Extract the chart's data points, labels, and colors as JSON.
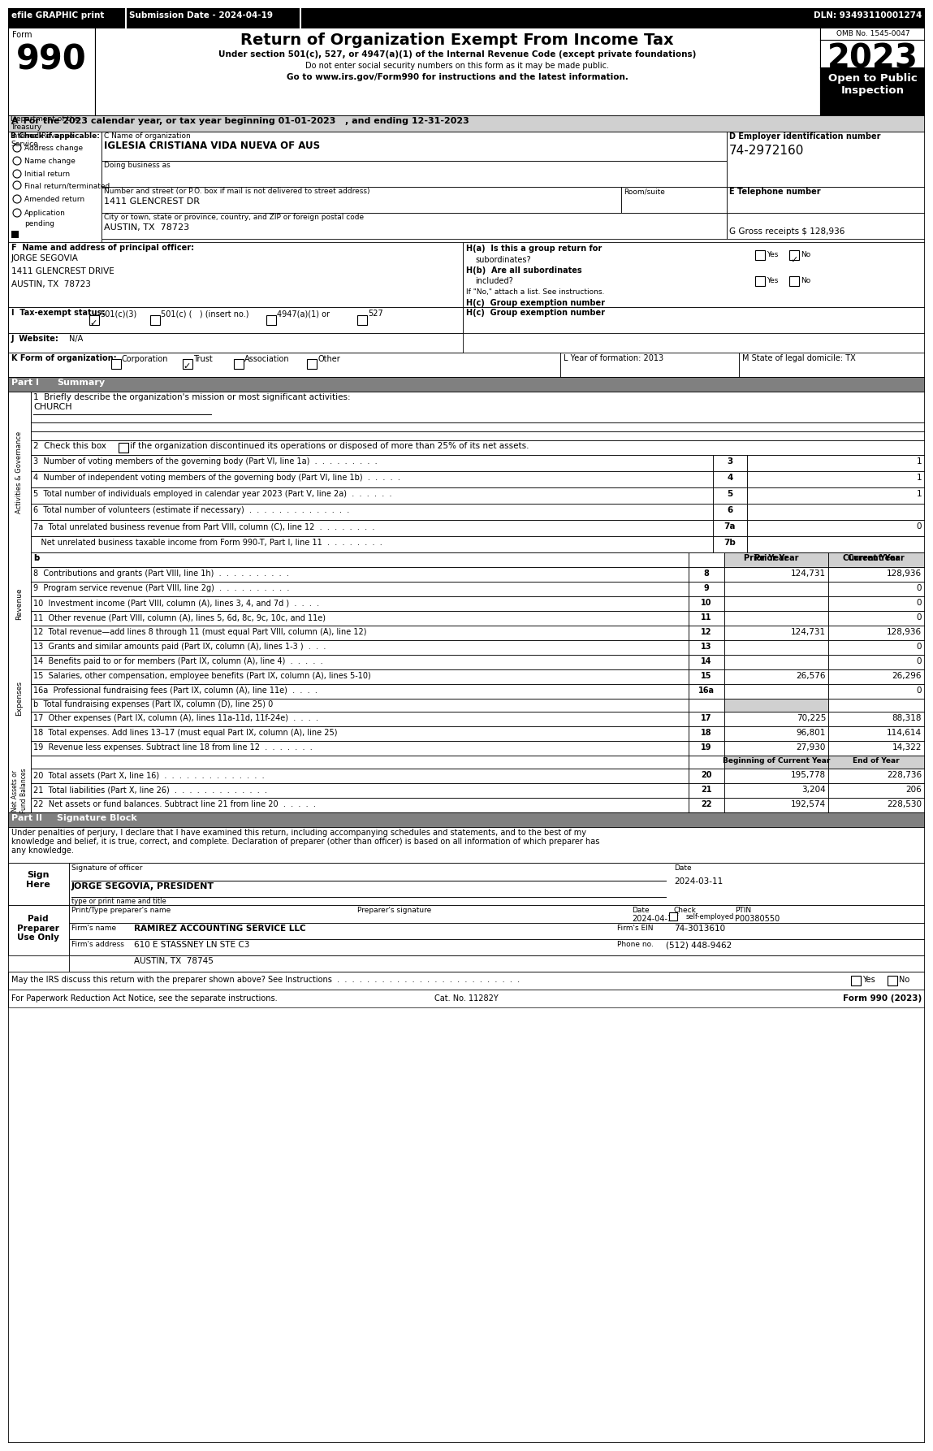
{
  "efile_text": "efile GRAPHIC print",
  "submission_date": "Submission Date - 2024-04-19",
  "dln": "DLN: 93493110001274",
  "form_number": "990",
  "main_title": "Return of Organization Exempt From Income Tax",
  "subtitle1": "Under section 501(c), 527, or 4947(a)(1) of the Internal Revenue Code (except private foundations)",
  "subtitle2": "Do not enter social security numbers on this form as it may be made public.",
  "subtitle3": "Go to www.irs.gov/Form990 for instructions and the latest information.",
  "omb_no": "OMB No. 1545-0047",
  "year": "2023",
  "open_to_public": "Open to Public\nInspection",
  "dept_treasury": "Department of the\nTreasury\nInternal Revenue\nService",
  "section_a": "A  For the 2023 calendar year, or tax year beginning 01-01-2023   , and ending 12-31-2023",
  "org_name": "IGLESIA CRISTIANA VIDA NUEVA OF AUS",
  "dba_label": "Doing business as",
  "street_label": "Number and street (or P.O. box if mail is not delivered to street address)",
  "room_label": "Room/suite",
  "street_value": "1411 GLENCREST DR",
  "city_label": "City or town, state or province, country, and ZIP or foreign postal code",
  "city_value": "AUSTIN, TX  78723",
  "ein": "74-2972160",
  "gross_receipts": "128,936",
  "principal_officer": "JORGE SEGOVIA\n1411 GLENCREST DRIVE\nAUSTIN, TX  78723",
  "line1_value": "CHURCH",
  "line3_label": "3  Number of voting members of the governing body (Part VI, line 1a)  .  .  .  .  .  .  .  .  .",
  "line3_val": "1",
  "line4_label": "4  Number of independent voting members of the governing body (Part VI, line 1b)  .  .  .  .  .",
  "line4_val": "1",
  "line5_label": "5  Total number of individuals employed in calendar year 2023 (Part V, line 2a)  .  .  .  .  .  .",
  "line5_val": "1",
  "line6_label": "6  Total number of volunteers (estimate if necessary)  .  .  .  .  .  .  .  .  .  .  .  .  .  .",
  "line6_val": "",
  "line7a_label": "7a  Total unrelated business revenue from Part VIII, column (C), line 12  .  .  .  .  .  .  .  .",
  "line7a_val": "0",
  "line7b_label": "   Net unrelated business taxable income from Form 990-T, Part I, line 11  .  .  .  .  .  .  .  .",
  "line7b_val": "",
  "line8_label": "8  Contributions and grants (Part VIII, line 1h)  .  .  .  .  .  .  .  .  .  .",
  "line8_prior": "124,731",
  "line8_curr": "128,936",
  "line9_label": "9  Program service revenue (Part VIII, line 2g)  .  .  .  .  .  .  .  .  .  .",
  "line9_prior": "",
  "line9_curr": "0",
  "line10_label": "10  Investment income (Part VIII, column (A), lines 3, 4, and 7d )  .  .  .  .",
  "line10_prior": "",
  "line10_curr": "0",
  "line11_label": "11  Other revenue (Part VIII, column (A), lines 5, 6d, 8c, 9c, 10c, and 11e)",
  "line11_prior": "",
  "line11_curr": "0",
  "line12_label": "12  Total revenue—add lines 8 through 11 (must equal Part VIII, column (A), line 12)",
  "line12_prior": "124,731",
  "line12_curr": "128,936",
  "line13_label": "13  Grants and similar amounts paid (Part IX, column (A), lines 1-3 )  .  .  .",
  "line13_prior": "",
  "line13_curr": "0",
  "line14_label": "14  Benefits paid to or for members (Part IX, column (A), line 4)  .  .  .  .  .",
  "line14_prior": "",
  "line14_curr": "0",
  "line15_label": "15  Salaries, other compensation, employee benefits (Part IX, column (A), lines 5-10)",
  "line15_prior": "26,576",
  "line15_curr": "26,296",
  "line16a_label": "16a  Professional fundraising fees (Part IX, column (A), line 11e)  .  .  .  .",
  "line16a_prior": "",
  "line16a_curr": "0",
  "line16b_label": "b  Total fundraising expenses (Part IX, column (D), line 25) 0",
  "line17_label": "17  Other expenses (Part IX, column (A), lines 11a-11d, 11f-24e)  .  .  .  .",
  "line17_prior": "70,225",
  "line17_curr": "88,318",
  "line18_label": "18  Total expenses. Add lines 13–17 (must equal Part IX, column (A), line 25)",
  "line18_prior": "96,801",
  "line18_curr": "114,614",
  "line19_label": "19  Revenue less expenses. Subtract line 18 from line 12  .  .  .  .  .  .  .",
  "line19_prior": "27,930",
  "line19_curr": "14,322",
  "line20_label": "20  Total assets (Part X, line 16)  .  .  .  .  .  .  .  .  .  .  .  .  .  .",
  "line20_prior": "195,778",
  "line20_curr": "228,736",
  "line21_label": "21  Total liabilities (Part X, line 26)  .  .  .  .  .  .  .  .  .  .  .  .  .",
  "line21_prior": "3,204",
  "line21_curr": "206",
  "line22_label": "22  Net assets or fund balances. Subtract line 21 from line 20  .  .  .  .  .",
  "line22_prior": "192,574",
  "line22_curr": "228,530",
  "sig_text1": "Under penalties of perjury, I declare that I have examined this return, including accompanying schedules and statements, and to the best of my",
  "sig_text2": "knowledge and belief, it is true, correct, and complete. Declaration of preparer (other than officer) is based on all information of which preparer has",
  "sig_text3": "any knowledge.",
  "sig_date1": "2024-03-11",
  "sig_name": "JORGE SEGOVIA, PRESIDENT",
  "prep_ptin": "P00380550",
  "prep_date": "2024-04-18",
  "firm_name": "RAMIREZ ACCOUNTING SERVICE LLC",
  "firm_ein": "74-3013610",
  "firm_addr": "610 E STASSNEY LN STE C3",
  "firm_city": "AUSTIN, TX  78745",
  "phone": "(512) 448-9462",
  "may_discuss": "May the IRS discuss this return with the preparer shown above? See Instructions  .  .  .  .  .  .  .  .  .  .  .  .  .  .  .  .  .  .  .  .  .  .  .  .  .",
  "footer1": "For Paperwork Reduction Act Notice, see the separate instructions.",
  "footer2": "Cat. No. 11282Y",
  "footer3": "Form 990 (2023)"
}
